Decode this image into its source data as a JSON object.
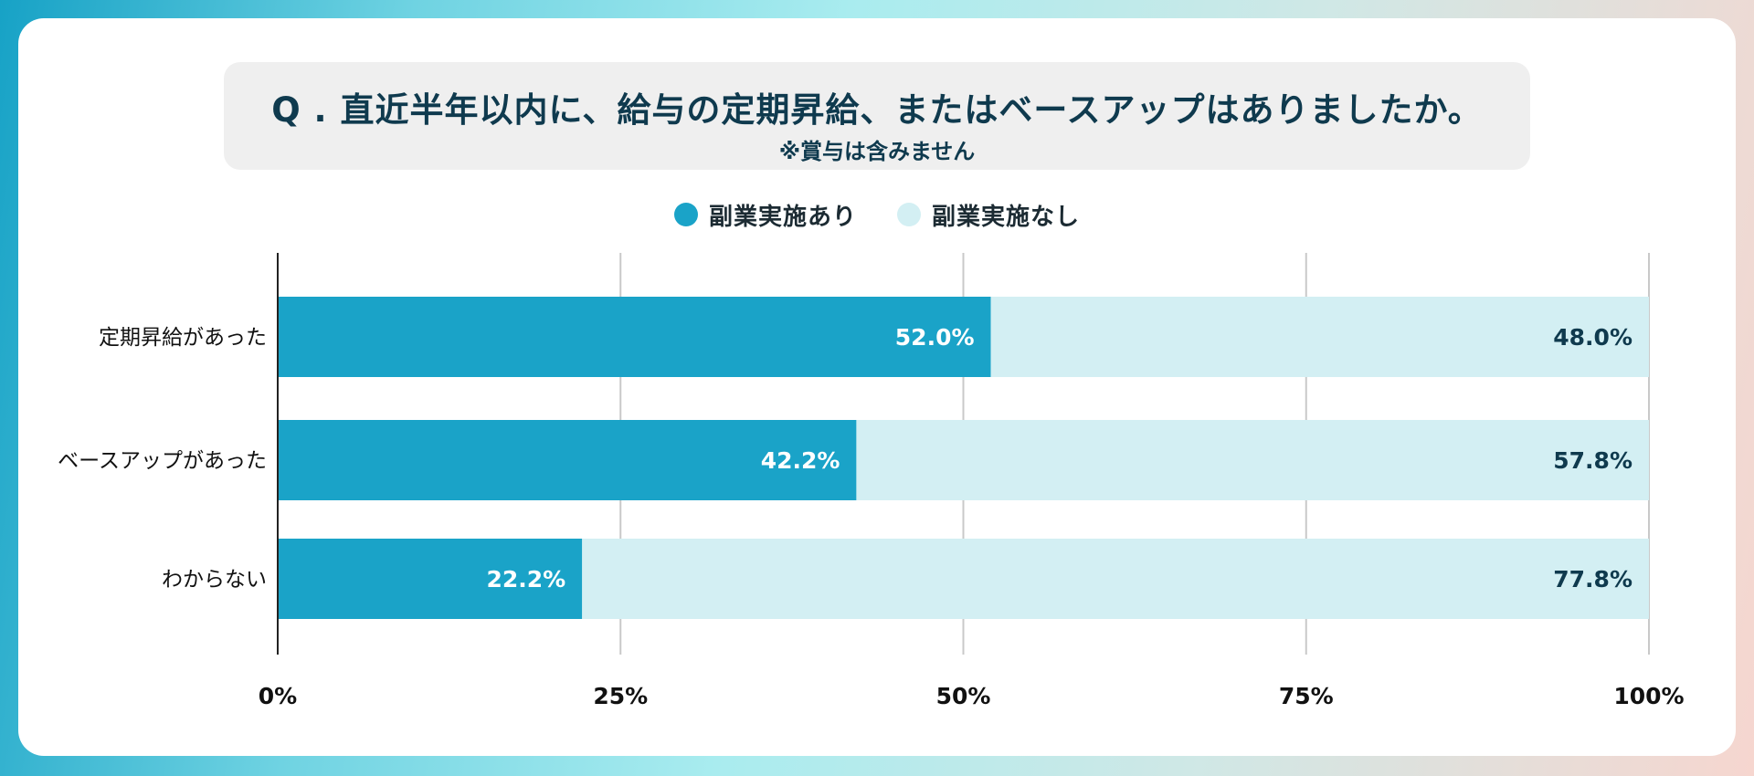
{
  "chart_data": {
    "type": "bar",
    "orientation": "horizontal",
    "stacked": true,
    "title": "Q . 直近半年以内に、給与の定期昇給、またはベースアップはありましたか。",
    "subtitle": "※賞与は含みません",
    "categories": [
      "定期昇給があった",
      "ベースアップがあった",
      "わからない"
    ],
    "series": [
      {
        "name": "副業実施あり",
        "values": [
          52.0,
          42.2,
          22.2
        ],
        "color": "#1aa3c8",
        "label_color": "#ffffff"
      },
      {
        "name": "副業実施なし",
        "values": [
          48.0,
          57.8,
          77.8
        ],
        "color": "#d3eff3",
        "label_color": "#0f3a4e"
      }
    ],
    "value_labels": [
      [
        "52.0%",
        "42.2%",
        "22.2%"
      ],
      [
        "48.0%",
        "57.8%",
        "77.8%"
      ]
    ],
    "xlim": [
      0,
      100
    ],
    "xticks": [
      0,
      25,
      50,
      75,
      100
    ],
    "xtick_labels": [
      "0%",
      "25%",
      "50%",
      "75%",
      "100%"
    ],
    "grid": true,
    "legend_position": "top-center"
  }
}
